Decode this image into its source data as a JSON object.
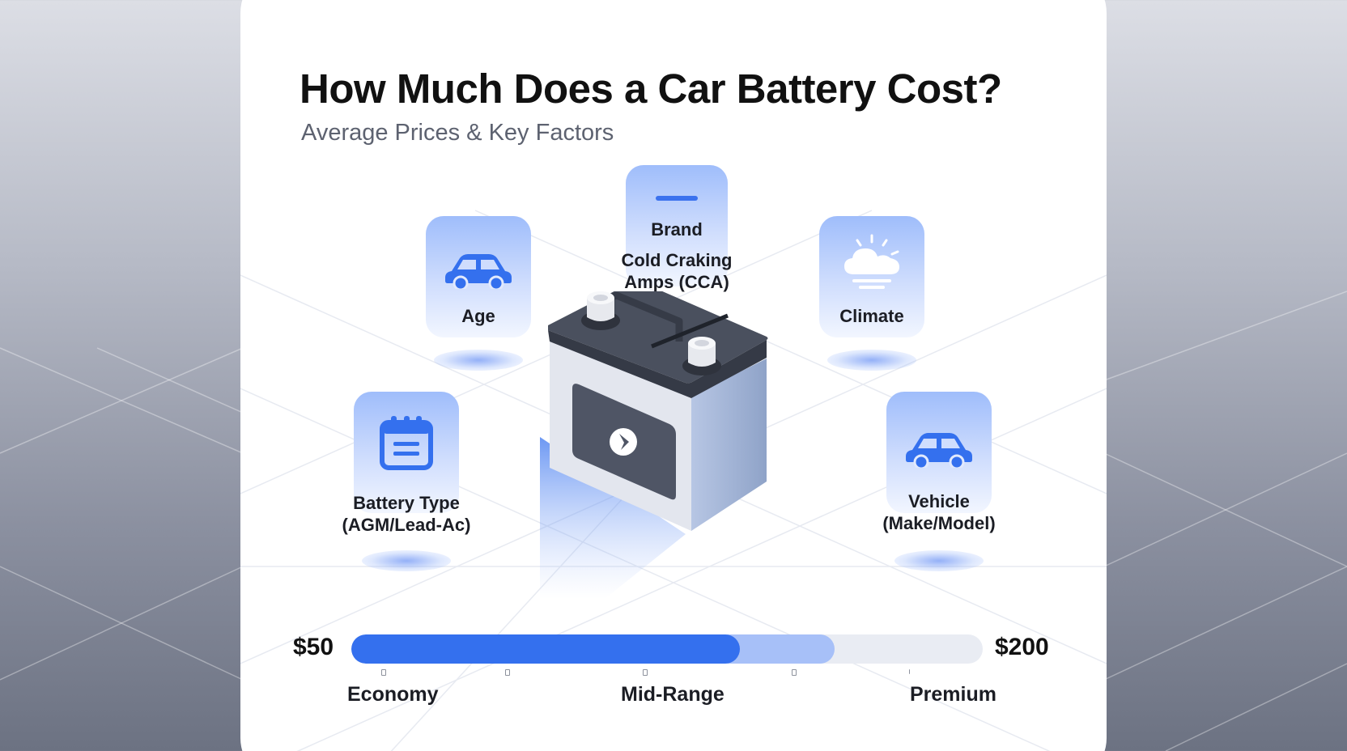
{
  "title": "How Much Does a Car Battery Cost?",
  "subtitle": "Average Prices & Key Factors",
  "factors": {
    "brand": {
      "label": "Brand",
      "icon": "bar-icon"
    },
    "cca": {
      "label": "Cold Craking\nAmps (CCA)"
    },
    "age": {
      "label": "Age",
      "icon": "car-icon"
    },
    "climate": {
      "label": "Climate",
      "icon": "cloud-sun-icon"
    },
    "battery_type": {
      "label": "Battery Type\n(AGM/Lead-Ac)",
      "icon": "calendar-icon"
    },
    "vehicle": {
      "label": "Vehicle\n(Make/Model)",
      "icon": "car-icon"
    }
  },
  "price_range": {
    "min": "$50",
    "max": "$200",
    "economy_fill_fraction": 0.615,
    "midrange_fill_fraction": 0.765,
    "tiers": [
      "Economy",
      "Mid-Range",
      "Premium"
    ]
  },
  "colors": {
    "accent": "#3470ee",
    "accent_light": "#a7c0f8",
    "track": "#e9ecf3",
    "battery_top": "#4d5361",
    "battery_body": "#dfe2ea"
  }
}
